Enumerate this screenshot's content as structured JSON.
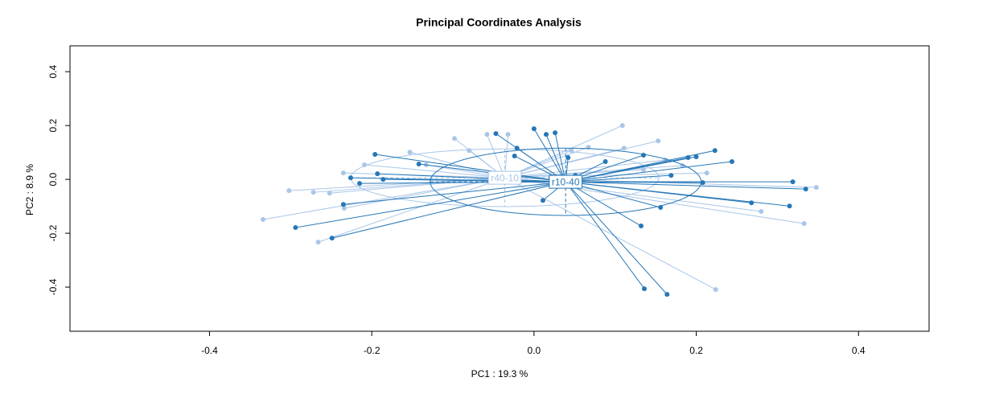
{
  "chart_data": {
    "type": "scatter",
    "title": "Principal Coordinates Analysis",
    "x_label": "PC1 : 19.3 %",
    "y_label": "PC2 : 8.9 %",
    "xlim": [
      -0.572,
      0.487
    ],
    "ylim": [
      -0.564,
      0.496
    ],
    "xticks": [
      -0.4,
      -0.2,
      {
        "value": 0,
        "label": "0.0"
      },
      0.2,
      0.4
    ],
    "yticks": [
      -0.4,
      -0.2,
      {
        "value": 0,
        "label": "0.0"
      },
      0.2,
      0.4
    ],
    "series": [
      {
        "name": "r40-10",
        "color": "#a9c6e8",
        "centroid": [
          -0.036,
          0.006
        ],
        "ellipse": [
          0.19,
          0.107
        ],
        "x": [
          -0.334,
          -0.302,
          -0.272,
          -0.252,
          -0.235,
          -0.234,
          -0.266,
          -0.209,
          -0.153,
          -0.133,
          -0.098,
          -0.08,
          -0.058,
          -0.032,
          0.046,
          0.067,
          0.109,
          0.111,
          0.153,
          0.162,
          0.183,
          0.213,
          0.28,
          0.348,
          0.333,
          0.224,
          0.135
        ],
        "y": [
          -0.149,
          -0.042,
          -0.048,
          -0.051,
          0.024,
          -0.107,
          -0.233,
          0.054,
          0.101,
          0.054,
          0.152,
          0.107,
          0.167,
          0.167,
          0.107,
          0.119,
          0.2,
          0.116,
          0.143,
          0.072,
          0.051,
          0.024,
          -0.119,
          -0.03,
          -0.164,
          -0.409,
          0.036
        ]
      },
      {
        "name": "r10-40",
        "color": "#2677b6",
        "centroid": [
          0.039,
          -0.009
        ],
        "ellipse": [
          0.167,
          0.125
        ],
        "x": [
          -0.196,
          -0.226,
          -0.215,
          -0.193,
          -0.186,
          -0.235,
          -0.142,
          -0.294,
          -0.249,
          -0.047,
          0.0,
          0.015,
          0.026,
          -0.021,
          -0.024,
          0.011,
          0.042,
          0.051,
          0.088,
          0.135,
          0.169,
          0.19,
          0.2,
          0.223,
          0.244,
          0.208,
          0.156,
          0.132,
          0.136,
          0.164,
          0.268,
          0.315,
          0.319,
          0.335
        ],
        "y": [
          0.093,
          0.006,
          -0.015,
          0.021,
          0.0,
          -0.093,
          0.057,
          -0.179,
          -0.218,
          0.17,
          0.188,
          0.167,
          0.173,
          0.116,
          0.087,
          -0.078,
          0.081,
          0.015,
          0.066,
          0.09,
          0.015,
          0.081,
          0.084,
          0.107,
          0.066,
          -0.012,
          -0.104,
          -0.173,
          -0.406,
          -0.427,
          -0.087,
          -0.099,
          -0.009,
          -0.036
        ]
      }
    ]
  }
}
